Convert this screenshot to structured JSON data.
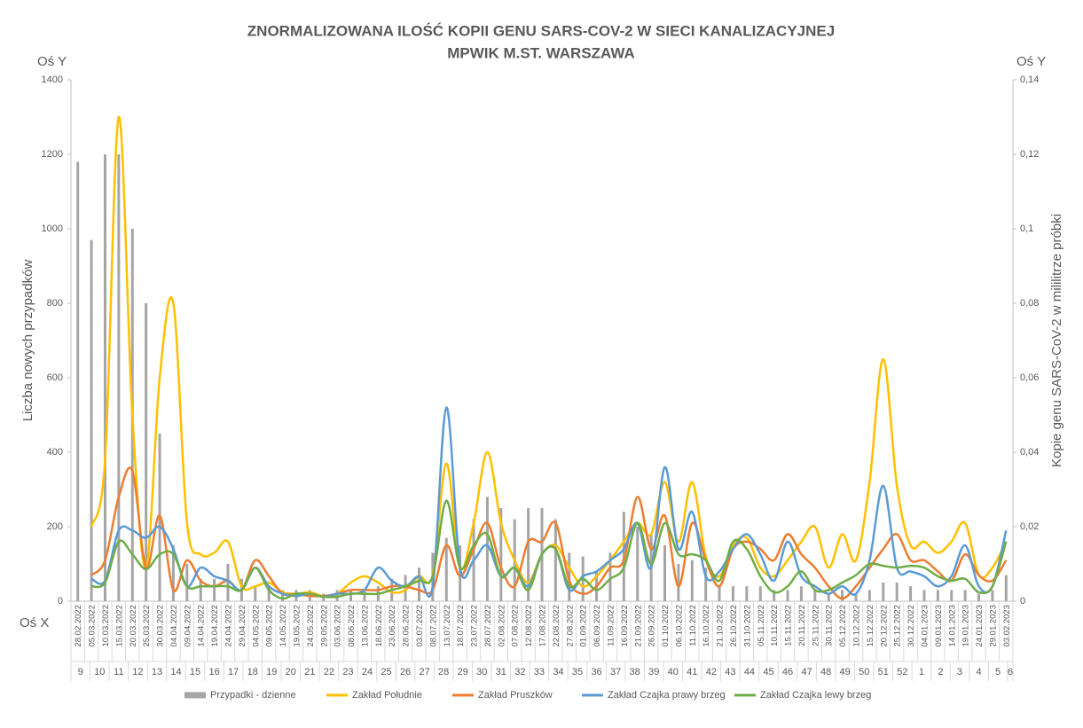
{
  "chart_data": {
    "type": "combo",
    "title": "ZNORMALIZOWANA ILOŚĆ KOPII GENU SARS-COV-2 W SIECI KANALIZACYJNEJ",
    "subtitle": "MPWIK M.ST. WARSZAWA",
    "y_label": "Liczba nowych przypadków",
    "y2_label": "Kopie genu SARS-CoV-2 w mililitrze próbki",
    "annotations": [
      "Oś Y",
      "Oś Y",
      "Oś X"
    ],
    "categories": [
      "28.02.2022",
      "05.03.2022",
      "10.03.2022",
      "15.03.2022",
      "20.03.2022",
      "25.03.2022",
      "30.03.2022",
      "04.04.2022",
      "09.04.2022",
      "14.04.2022",
      "19.04.2022",
      "24.04.2022",
      "29.04.2022",
      "04.05.2022",
      "09.05.2022",
      "14.05.2022",
      "19.05.2022",
      "24.05.2022",
      "29.05.2022",
      "03.06.2022",
      "08.06.2022",
      "13.06.2022",
      "18.06.2022",
      "23.06.2022",
      "28.06.2022",
      "03.07.2022",
      "08.07.2022",
      "13.07.2022",
      "18.07.2022",
      "23.07.2022",
      "28.07.2022",
      "02.08.2022",
      "07.08.2022",
      "12.08.2022",
      "17.08.2022",
      "22.08.2022",
      "27.08.2022",
      "01.09.2022",
      "06.09.2022",
      "11.09.2022",
      "16.09.2022",
      "21.09.2022",
      "26.09.2022",
      "01.10.2022",
      "06.10.2022",
      "11.10.2022",
      "16.10.2022",
      "21.10.2022",
      "26.10.2022",
      "31.10.2022",
      "05.11.2022",
      "10.11.2022",
      "15.11.2022",
      "20.11.2022",
      "25.11.2022",
      "30.11.2022",
      "05.12.2022",
      "10.12.2022",
      "15.12.2022",
      "20.12.2022",
      "25.12.2022",
      "30.12.2022",
      "04.01.2023",
      "09.01.2023",
      "14.01.2023",
      "19.01.2023",
      "24.01.2023",
      "29.01.2023",
      "03.02.2023"
    ],
    "weeks": [
      "9",
      "10",
      "11",
      "12",
      "13",
      "14",
      "15",
      "16",
      "17",
      "18",
      "19",
      "20",
      "21",
      "22",
      "23",
      "24",
      "25",
      "26",
      "27",
      "28",
      "29",
      "30",
      "31",
      "32",
      "33",
      "34",
      "35",
      "36",
      "37",
      "38",
      "39",
      "40",
      "41",
      "42",
      "43",
      "44",
      "45",
      "46",
      "47",
      "48",
      "49",
      "50",
      "51",
      "52",
      "1",
      "2",
      "3",
      "4",
      "5",
      "6"
    ],
    "ylim": [
      0,
      1400
    ],
    "yticks": [
      0,
      200,
      400,
      600,
      800,
      1000,
      1200,
      1400
    ],
    "y2lim": [
      0,
      0.14
    ],
    "y2ticks": [
      0,
      {
        "value": 0.02,
        "label": "0,02"
      },
      {
        "value": 0.04,
        "label": "0,04"
      },
      {
        "value": 0.06,
        "label": "0,06"
      },
      {
        "value": 0.08,
        "label": "0,08"
      },
      {
        "value": 0.1,
        "label": "0,1"
      },
      {
        "value": 0.12,
        "label": "0,12"
      },
      {
        "value": 0.14,
        "label": "0,14"
      }
    ],
    "grid": false,
    "legend": "bottom",
    "series": [
      {
        "name": "Przypadki - dzienne",
        "type": "bar",
        "color": "#a5a5a5",
        "values": [
          1180,
          970,
          1200,
          1200,
          1000,
          800,
          450,
          150,
          100,
          60,
          60,
          100,
          60,
          40,
          40,
          30,
          30,
          30,
          20,
          30,
          30,
          30,
          40,
          60,
          70,
          90,
          130,
          170,
          150,
          220,
          280,
          250,
          220,
          250,
          250,
          220,
          130,
          120,
          80,
          130,
          240,
          200,
          180,
          150,
          100,
          110,
          90,
          40,
          40,
          40,
          40,
          30,
          30,
          40,
          30,
          20,
          30,
          20,
          30,
          50,
          50,
          40,
          30,
          30,
          30,
          30,
          20,
          30,
          70
        ]
      },
      {
        "name": "Zakład Południe",
        "type": "line",
        "axis": "y2",
        "color": "#ffc000",
        "values": [
          null,
          0.02,
          0.038,
          0.13,
          0.05,
          0.009,
          0.06,
          0.08,
          0.021,
          0.0126,
          0.013,
          0.016,
          0.004,
          0.004,
          0.005,
          0.0024,
          0.002,
          0.0024,
          0.0014,
          0.002,
          0.005,
          0.0067,
          0.005,
          0.0024,
          0.003,
          0.0067,
          0.007,
          0.037,
          0.009,
          0.021,
          0.04,
          0.021,
          0.011,
          0.005,
          0.0126,
          0.015,
          0.009,
          0.004,
          0.0067,
          0.011,
          0.016,
          0.021,
          0.018,
          0.032,
          0.016,
          0.032,
          0.012,
          0.0067,
          0.015,
          0.017,
          0.009,
          0.0067,
          0.011,
          0.016,
          0.02,
          0.009,
          0.018,
          0.011,
          0.032,
          0.065,
          0.031,
          0.015,
          0.016,
          0.013,
          0.016,
          0.021,
          0.007,
          0.009,
          0.016
        ]
      },
      {
        "name": "Zakład Pruszków",
        "type": "line",
        "axis": "y2",
        "color": "#ed7d31",
        "values": [
          null,
          0.007,
          0.011,
          0.028,
          0.035,
          0.009,
          0.023,
          0.003,
          0.011,
          0.0055,
          0.004,
          0.0055,
          0.003,
          0.011,
          0.0067,
          0.002,
          0.002,
          0.0014,
          0.0014,
          0.002,
          0.003,
          0.003,
          0.003,
          0.004,
          0.004,
          0.003,
          0.003,
          0.015,
          0.0067,
          0.014,
          0.021,
          0.009,
          0.004,
          0.016,
          0.016,
          0.021,
          0.0055,
          0.002,
          0.004,
          0.009,
          0.011,
          0.028,
          0.014,
          0.023,
          0.004,
          0.021,
          0.011,
          0.004,
          0.014,
          0.016,
          0.014,
          0.011,
          0.018,
          0.0126,
          0.009,
          0.004,
          0.0007,
          0.004,
          0.009,
          0.014,
          0.018,
          0.011,
          0.011,
          0.008,
          0.0055,
          0.0126,
          0.007,
          0.0055,
          0.011
        ]
      },
      {
        "name": "Zakład Czajka prawy brzeg",
        "type": "line",
        "axis": "y2",
        "color": "#5b9bd5",
        "values": [
          null,
          0.006,
          0.0055,
          0.019,
          0.019,
          0.017,
          0.02,
          0.014,
          0.004,
          0.009,
          0.0067,
          0.0055,
          0.003,
          0.009,
          0.004,
          0.002,
          0.0014,
          0.002,
          0.0012,
          0.002,
          0.002,
          0.003,
          0.009,
          0.0055,
          0.004,
          0.0067,
          0.004,
          0.052,
          0.009,
          0.011,
          0.015,
          0.0067,
          0.009,
          0.004,
          0.0126,
          0.014,
          0.003,
          0.0067,
          0.008,
          0.011,
          0.014,
          0.021,
          0.009,
          0.036,
          0.014,
          0.024,
          0.0067,
          0.008,
          0.014,
          0.018,
          0.0126,
          0.0055,
          0.016,
          0.0067,
          0.004,
          0.002,
          0.004,
          0.002,
          0.011,
          0.031,
          0.009,
          0.008,
          0.0067,
          0.004,
          0.0067,
          0.015,
          0.004,
          0.004,
          0.019
        ]
      },
      {
        "name": "Zakład Czajka lewy brzeg",
        "type": "line",
        "axis": "y2",
        "color": "#70ad47",
        "values": [
          null,
          0.004,
          0.005,
          0.016,
          0.0126,
          0.0086,
          0.0126,
          0.0126,
          0.004,
          0.004,
          0.004,
          0.004,
          0.003,
          0.009,
          0.003,
          0.0007,
          0.002,
          0.002,
          0.0012,
          0.0012,
          0.002,
          0.002,
          0.002,
          0.003,
          0.004,
          0.0055,
          0.0067,
          0.027,
          0.009,
          0.015,
          0.018,
          0.0067,
          0.009,
          0.003,
          0.0126,
          0.014,
          0.004,
          0.006,
          0.003,
          0.006,
          0.009,
          0.021,
          0.01,
          0.021,
          0.0126,
          0.0126,
          0.011,
          0.0055,
          0.016,
          0.014,
          0.0067,
          0.0024,
          0.004,
          0.008,
          0.003,
          0.003,
          0.005,
          0.007,
          0.01,
          0.0095,
          0.009,
          0.0095,
          0.009,
          0.0067,
          0.0055,
          0.006,
          0.0024,
          0.004,
          0.016
        ]
      }
    ]
  }
}
